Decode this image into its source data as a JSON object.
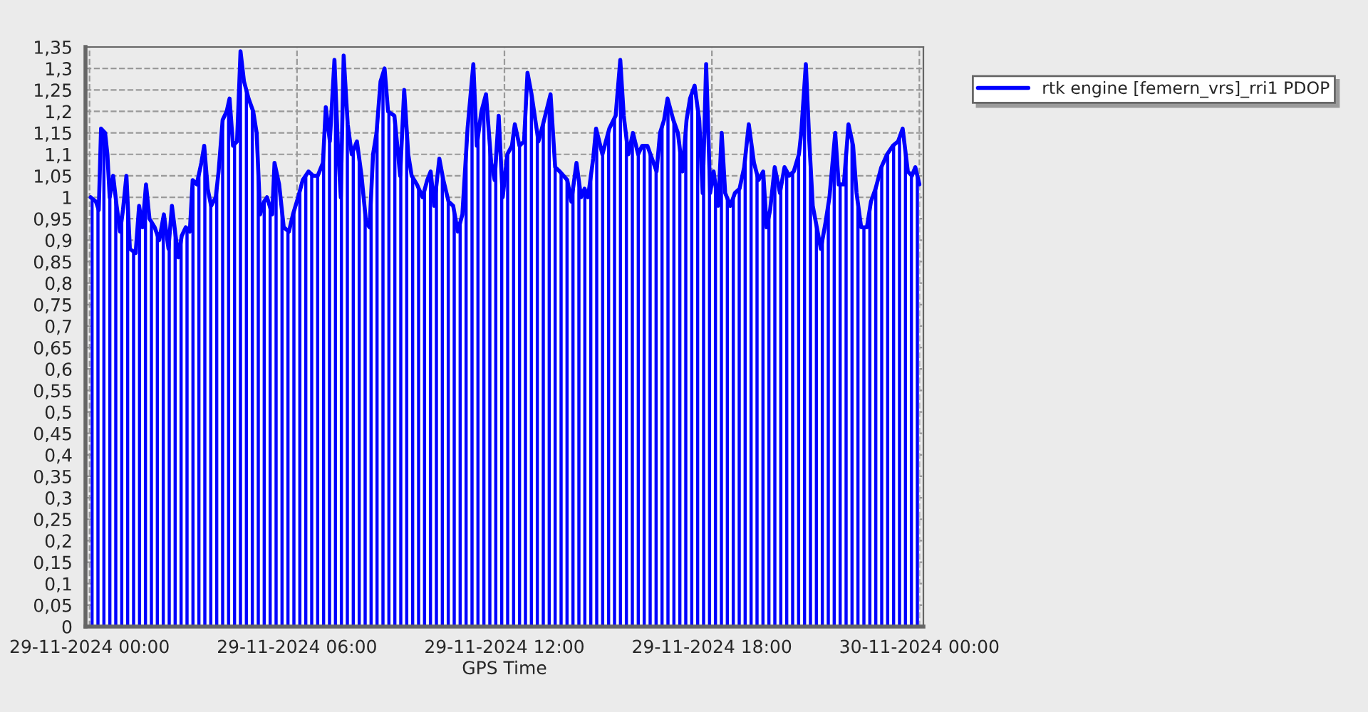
{
  "chart_data": {
    "type": "area",
    "xlabel": "GPS Time",
    "x": [
      "2024-11-29T00:02",
      "2024-11-29T00:11",
      "2024-11-29T00:16",
      "2024-11-29T00:20",
      "2024-11-29T00:27",
      "2024-11-29T00:31",
      "2024-11-29T00:35",
      "2024-11-29T00:41",
      "2024-11-29T00:47",
      "2024-11-29T00:53",
      "2024-11-29T00:58",
      "2024-11-29T01:04",
      "2024-11-29T01:10",
      "2024-11-29T01:20",
      "2024-11-29T01:26",
      "2024-11-29T01:32",
      "2024-11-29T01:38",
      "2024-11-29T01:44",
      "2024-11-29T01:53",
      "2024-11-29T02:01",
      "2024-11-29T02:09",
      "2024-11-29T02:17",
      "2024-11-29T02:23",
      "2024-11-29T02:34",
      "2024-11-29T02:40",
      "2024-11-29T02:47",
      "2024-11-29T02:54",
      "2024-11-29T02:59",
      "2024-11-29T03:06",
      "2024-11-29T03:14",
      "2024-11-29T03:19",
      "2024-11-29T03:25",
      "2024-11-29T03:31",
      "2024-11-29T03:39",
      "2024-11-29T03:44",
      "2024-11-29T03:51",
      "2024-11-29T03:58",
      "2024-11-29T04:03",
      "2024-11-29T04:09",
      "2024-11-29T04:16",
      "2024-11-29T04:22",
      "2024-11-29T04:28",
      "2024-11-29T04:36",
      "2024-11-29T04:44",
      "2024-11-29T04:50",
      "2024-11-29T04:56",
      "2024-11-29T05:03",
      "2024-11-29T05:08",
      "2024-11-29T05:17",
      "2024-11-29T05:21",
      "2024-11-29T05:29",
      "2024-11-29T05:37",
      "2024-11-29T05:46",
      "2024-11-29T05:53",
      "2024-11-29T06:02",
      "2024-11-29T06:10",
      "2024-11-29T06:20",
      "2024-11-29T06:28",
      "2024-11-29T06:36",
      "2024-11-29T06:45",
      "2024-11-29T06:50",
      "2024-11-29T06:57",
      "2024-11-29T07:05",
      "2024-11-29T07:11",
      "2024-11-29T07:16",
      "2024-11-29T07:21",
      "2024-11-29T07:28",
      "2024-11-29T07:35",
      "2024-11-29T07:44",
      "2024-11-29T07:52",
      "2024-11-29T08:00",
      "2024-11-29T08:06",
      "2024-11-29T08:12",
      "2024-11-29T08:18",
      "2024-11-29T08:25",
      "2024-11-29T08:32",
      "2024-11-29T08:38",
      "2024-11-29T08:49",
      "2024-11-29T08:59",
      "2024-11-29T09:06",
      "2024-11-29T09:13",
      "2024-11-29T09:19",
      "2024-11-29T09:28",
      "2024-11-29T09:38",
      "2024-11-29T09:46",
      "2024-11-29T09:52",
      "2024-11-29T09:58",
      "2024-11-29T10:07",
      "2024-11-29T10:14",
      "2024-11-29T10:23",
      "2024-11-29T10:31",
      "2024-11-29T10:39",
      "2024-11-29T10:47",
      "2024-11-29T10:56",
      "2024-11-29T11:06",
      "2024-11-29T11:12",
      "2024-11-29T11:20",
      "2024-11-29T11:28",
      "2024-11-29T11:37",
      "2024-11-29T11:43",
      "2024-11-29T11:50",
      "2024-11-29T11:57",
      "2024-11-29T12:05",
      "2024-11-29T12:13",
      "2024-11-29T12:18",
      "2024-11-29T12:26",
      "2024-11-29T12:34",
      "2024-11-29T12:40",
      "2024-11-29T12:47",
      "2024-11-29T12:59",
      "2024-11-29T13:07",
      "2024-11-29T13:20",
      "2024-11-29T13:28",
      "2024-11-29T13:36",
      "2024-11-29T13:49",
      "2024-11-29T13:56",
      "2024-11-29T14:05",
      "2024-11-29T14:13",
      "2024-11-29T14:19",
      "2024-11-29T14:25",
      "2024-11-29T14:34",
      "2024-11-29T14:39",
      "2024-11-29T14:50",
      "2024-11-29T15:02",
      "2024-11-29T15:13",
      "2024-11-29T15:21",
      "2024-11-29T15:27",
      "2024-11-29T15:35",
      "2024-11-29T15:43",
      "2024-11-29T15:52",
      "2024-11-29T15:59",
      "2024-11-29T16:08",
      "2024-11-29T16:16",
      "2024-11-29T16:24",
      "2024-11-29T16:30",
      "2024-11-29T16:37",
      "2024-11-29T16:43",
      "2024-11-29T16:53",
      "2024-11-29T17:01",
      "2024-11-29T17:09",
      "2024-11-29T17:16",
      "2024-11-29T17:22",
      "2024-11-29T17:30",
      "2024-11-29T17:38",
      "2024-11-29T17:44",
      "2024-11-29T17:50",
      "2024-11-29T17:57",
      "2024-11-29T18:03",
      "2024-11-29T18:11",
      "2024-11-29T18:17",
      "2024-11-29T18:23",
      "2024-11-29T18:32",
      "2024-11-29T18:40",
      "2024-11-29T18:48",
      "2024-11-29T18:56",
      "2024-11-29T19:04",
      "2024-11-29T19:13",
      "2024-11-29T19:21",
      "2024-11-29T19:29",
      "2024-11-29T19:35",
      "2024-11-29T19:41",
      "2024-11-29T19:49",
      "2024-11-29T19:58",
      "2024-11-29T20:06",
      "2024-11-29T20:14",
      "2024-11-29T20:22",
      "2024-11-29T20:31",
      "2024-11-29T20:35",
      "2024-11-29T20:43",
      "2024-11-29T20:49",
      "2024-11-29T20:55",
      "2024-11-29T21:02",
      "2024-11-29T21:09",
      "2024-11-29T21:17",
      "2024-11-29T21:24",
      "2024-11-29T21:34",
      "2024-11-29T21:40",
      "2024-11-29T21:49",
      "2024-11-29T21:57",
      "2024-11-29T22:05",
      "2024-11-29T22:11",
      "2024-11-29T22:19",
      "2024-11-29T22:29",
      "2024-11-29T22:36",
      "2024-11-29T22:44",
      "2024-11-29T22:54",
      "2024-11-29T23:04",
      "2024-11-29T23:14",
      "2024-11-29T23:23",
      "2024-11-29T23:31",
      "2024-11-29T23:40",
      "2024-11-29T23:47",
      "2024-11-29T23:53",
      "2024-11-30T00:00"
    ],
    "series": [
      {
        "name": "rtk engine [femern_vrs]_rri1 PDOP",
        "color": "#0000ff",
        "values": [
          1.0,
          0.99,
          0.97,
          1.16,
          1.15,
          1.1,
          1.0,
          1.05,
          0.98,
          0.92,
          0.97,
          1.05,
          0.88,
          0.87,
          0.98,
          0.93,
          1.03,
          0.95,
          0.93,
          0.9,
          0.96,
          0.88,
          0.98,
          0.86,
          0.91,
          0.93,
          0.92,
          1.04,
          1.03,
          1.08,
          1.12,
          1.02,
          0.98,
          1.0,
          1.06,
          1.18,
          1.2,
          1.23,
          1.12,
          1.13,
          1.34,
          1.27,
          1.23,
          1.2,
          1.15,
          0.96,
          0.99,
          1.0,
          0.96,
          1.08,
          1.03,
          0.93,
          0.92,
          0.96,
          1.0,
          1.04,
          1.06,
          1.05,
          1.05,
          1.08,
          1.21,
          1.13,
          1.32,
          1.12,
          1.0,
          1.33,
          1.17,
          1.1,
          1.13,
          1.05,
          0.94,
          0.93,
          1.1,
          1.15,
          1.27,
          1.3,
          1.2,
          1.19,
          1.05,
          1.25,
          1.1,
          1.05,
          1.03,
          1.0,
          1.04,
          1.06,
          0.98,
          1.09,
          1.04,
          0.99,
          0.98,
          0.92,
          0.96,
          1.16,
          1.31,
          1.12,
          1.2,
          1.24,
          1.08,
          1.04,
          1.19,
          1.0,
          1.1,
          1.12,
          1.17,
          1.12,
          1.13,
          1.29,
          1.24,
          1.13,
          1.17,
          1.24,
          1.07,
          1.06,
          1.04,
          0.99,
          1.08,
          1.0,
          1.02,
          1.0,
          1.09,
          1.16,
          1.1,
          1.16,
          1.19,
          1.32,
          1.19,
          1.1,
          1.15,
          1.1,
          1.12,
          1.12,
          1.09,
          1.06,
          1.15,
          1.18,
          1.23,
          1.18,
          1.15,
          1.06,
          1.18,
          1.23,
          1.26,
          1.18,
          1.01,
          1.31,
          1.01,
          1.06,
          0.98,
          1.15,
          1.01,
          0.98,
          1.01,
          1.02,
          1.07,
          1.17,
          1.08,
          1.04,
          1.06,
          0.93,
          0.97,
          1.07,
          1.01,
          1.07,
          1.05,
          1.06,
          1.1,
          1.15,
          1.31,
          1.13,
          0.98,
          0.93,
          0.88,
          0.94,
          1.0,
          1.15,
          1.03,
          1.03,
          1.17,
          1.12,
          1.01,
          0.93,
          0.93,
          0.99,
          1.02,
          1.07,
          1.1,
          1.12,
          1.13,
          1.16,
          1.06,
          1.05,
          1.07,
          1.03
        ]
      }
    ],
    "xlim": [
      "2024-11-28T23:53",
      "2024-11-30T00:07"
    ],
    "xticks": [
      {
        "value": "2024-11-29T00:00",
        "label": "29-11-2024 00:00"
      },
      {
        "value": "2024-11-29T06:00",
        "label": "29-11-2024 06:00"
      },
      {
        "value": "2024-11-29T12:00",
        "label": "29-11-2024 12:00"
      },
      {
        "value": "2024-11-29T18:00",
        "label": "29-11-2024 18:00"
      },
      {
        "value": "2024-11-30T00:00",
        "label": "30-11-2024 00:00"
      }
    ],
    "ylim": [
      0,
      1.35
    ],
    "yticks": [
      0,
      {
        "value": 0.05,
        "label": "0,05"
      },
      {
        "value": 0.1,
        "label": "0,1"
      },
      {
        "value": 0.15,
        "label": "0,15"
      },
      {
        "value": 0.2,
        "label": "0,2"
      },
      {
        "value": 0.25,
        "label": "0,25"
      },
      {
        "value": 0.3,
        "label": "0,3"
      },
      {
        "value": 0.35,
        "label": "0,35"
      },
      {
        "value": 0.4,
        "label": "0,4"
      },
      {
        "value": 0.45,
        "label": "0,45"
      },
      {
        "value": 0.5,
        "label": "0,5"
      },
      {
        "value": 0.55,
        "label": "0,55"
      },
      {
        "value": 0.6,
        "label": "0,6"
      },
      {
        "value": 0.65,
        "label": "0,65"
      },
      {
        "value": 0.7,
        "label": "0,7"
      },
      {
        "value": 0.75,
        "label": "0,75"
      },
      {
        "value": 0.8,
        "label": "0,8"
      },
      {
        "value": 0.85,
        "label": "0,85"
      },
      {
        "value": 0.9,
        "label": "0,9"
      },
      {
        "value": 0.95,
        "label": "0,95"
      },
      1,
      {
        "value": 1.05,
        "label": "1,05"
      },
      {
        "value": 1.1,
        "label": "1,1"
      },
      {
        "value": 1.15,
        "label": "1,15"
      },
      {
        "value": 1.2,
        "label": "1,2"
      },
      {
        "value": 1.25,
        "label": "1,25"
      },
      {
        "value": 1.3,
        "label": "1,3"
      },
      {
        "value": 1.35,
        "label": "1,35"
      }
    ],
    "grid": true,
    "legend": "top right",
    "line_style": "solid"
  }
}
